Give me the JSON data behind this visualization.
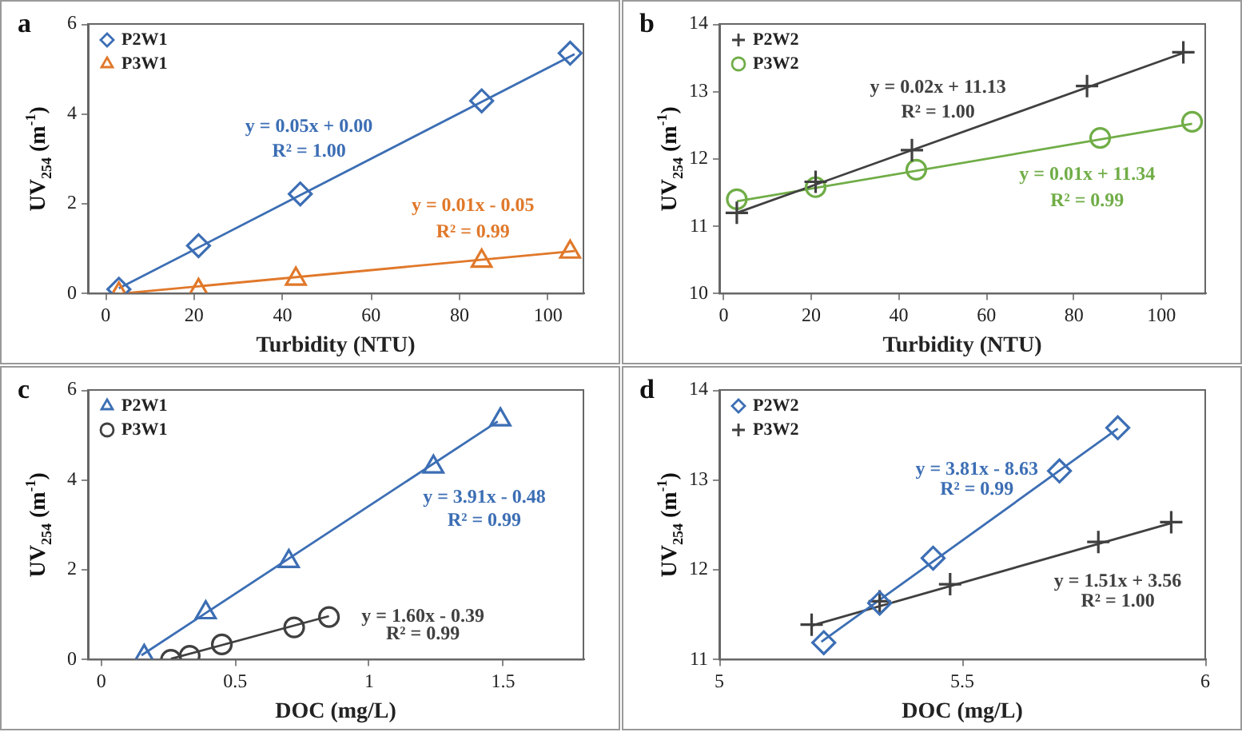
{
  "chart_data": [
    {
      "type": "scatter",
      "title": "a",
      "xlabel": "Turbidity (NTU)",
      "ylabel": "UV$_{254}$ (m$^{-1}$)",
      "xlim": [
        -4,
        108
      ],
      "xticks": [
        0,
        20,
        40,
        60,
        80,
        100
      ],
      "ylim": [
        0,
        6
      ],
      "yticks": [
        0,
        2,
        4,
        6
      ],
      "legend": "top left",
      "grid": false,
      "series": [
        {
          "name": "P2W1",
          "color": "#3c6eb4",
          "marker": "diamond",
          "x": [
            3,
            21,
            44,
            85,
            105
          ],
          "values": [
            0.1,
            1.07,
            2.22,
            4.29,
            5.35
          ]
        },
        {
          "name": "P3W1",
          "color": "#e0782a",
          "marker": "triangle",
          "x": [
            3,
            21,
            43,
            85,
            105
          ],
          "values": [
            0.0,
            0.08,
            0.33,
            0.73,
            0.93
          ]
        },
        {
          "type": "line",
          "color": "#3c6eb4",
          "marker": "none",
          "x": [
            3,
            106
          ],
          "values": [
            0.12,
            5.33
          ]
        },
        {
          "type": "line",
          "color": "#e0782a",
          "marker": "none",
          "x": [
            3,
            106
          ],
          "values": [
            0.0,
            0.95
          ]
        }
      ],
      "annotations": [
        "y = 0.05x + 0.00",
        "R² = 1.00",
        "y = 0.01x - 0.05",
        "R² = 0.99"
      ]
    },
    {
      "type": "scatter",
      "title": "b",
      "xlabel": "Turbidity (NTU)",
      "ylabel": "UV$_{254}$ (m$^{-1}$)",
      "xlim": [
        -1,
        110
      ],
      "xticks": [
        0,
        20,
        40,
        60,
        80,
        100
      ],
      "ylim": [
        10,
        14
      ],
      "yticks": [
        10,
        11,
        12,
        13,
        14
      ],
      "legend": "top left",
      "grid": false,
      "series": [
        {
          "name": "P2W2",
          "color": "#404040",
          "marker": "cross",
          "x": [
            3,
            21,
            43,
            83,
            105
          ],
          "values": [
            11.2,
            11.66,
            12.13,
            13.08,
            13.58
          ]
        },
        {
          "name": "P3W2",
          "color": "#70ad47",
          "marker": "circle",
          "x": [
            3,
            21,
            44,
            86,
            107
          ],
          "values": [
            11.4,
            11.58,
            11.84,
            12.31,
            12.55
          ]
        },
        {
          "type": "line",
          "color": "#404040",
          "marker": "none",
          "x": [
            3,
            105
          ],
          "values": [
            11.2,
            13.57
          ]
        },
        {
          "type": "line",
          "color": "#70ad47",
          "marker": "none",
          "x": [
            3,
            107
          ],
          "values": [
            11.37,
            12.52
          ]
        }
      ],
      "annotations": [
        "y = 0.02x + 11.13",
        "R² = 1.00",
        "y = 0.01x + 11.34",
        "R² = 0.99"
      ]
    },
    {
      "type": "scatter",
      "title": "c",
      "xlabel": "DOC (mg/L)",
      "ylabel": "UV$_{254}$ (m$^{-1}$)",
      "xlim": [
        -0.05,
        1.8
      ],
      "xticks": [
        0,
        0.5,
        1,
        1.5
      ],
      "ylim": [
        0,
        6
      ],
      "yticks": [
        0,
        2,
        4,
        6
      ],
      "legend": "top left",
      "grid": false,
      "series": [
        {
          "name": "P2W1",
          "color": "#3c6eb4",
          "marker": "triangle",
          "x": [
            0.16,
            0.39,
            0.7,
            1.24,
            1.49
          ],
          "values": [
            0.08,
            1.05,
            2.19,
            4.29,
            5.34
          ]
        },
        {
          "name": "P3W1",
          "color": "#404040",
          "marker": "circle",
          "x": [
            0.26,
            0.33,
            0.45,
            0.72,
            0.85
          ],
          "values": [
            0.0,
            0.09,
            0.34,
            0.72,
            0.95
          ]
        },
        {
          "type": "line",
          "color": "#3c6eb4",
          "marker": "none",
          "x": [
            0.15,
            1.48
          ],
          "values": [
            0.1,
            5.3
          ]
        },
        {
          "type": "line",
          "color": "#404040",
          "marker": "none",
          "x": [
            0.26,
            0.85
          ],
          "values": [
            0.02,
            0.97
          ]
        }
      ],
      "annotations": [
        "y = 3.91x - 0.48",
        "R² = 0.99",
        "y = 1.60x - 0.39",
        "R² = 0.99"
      ]
    },
    {
      "type": "scatter",
      "title": "d",
      "xlabel": "DOC (mg/L)",
      "ylabel": "UV$_{254}$ (m$^{-1}$)",
      "xlim": [
        5,
        6
      ],
      "xticks": [
        5,
        5.5,
        6
      ],
      "ylim": [
        11,
        14
      ],
      "yticks": [
        11,
        12,
        13,
        14
      ],
      "legend": "top left",
      "grid": false,
      "series": [
        {
          "name": "P2W2",
          "color": "#3c6eb4",
          "marker": "diamond",
          "x": [
            5.215,
            5.33,
            5.44,
            5.7,
            5.82
          ],
          "values": [
            11.19,
            11.63,
            12.13,
            13.1,
            13.58
          ]
        },
        {
          "name": "P3W2",
          "color": "#404040",
          "marker": "cross",
          "x": [
            5.19,
            5.33,
            5.475,
            5.78,
            5.93
          ],
          "values": [
            11.39,
            11.65,
            11.84,
            12.31,
            12.53
          ]
        },
        {
          "type": "line",
          "color": "#3c6eb4",
          "marker": "none",
          "x": [
            5.21,
            5.82
          ],
          "values": [
            11.2,
            13.57
          ]
        },
        {
          "type": "line",
          "color": "#404040",
          "marker": "none",
          "x": [
            5.19,
            5.93
          ],
          "values": [
            11.38,
            12.52
          ]
        }
      ],
      "annotations": [
        "y = 3.81x - 8.63",
        "R² = 0.99",
        "y = 1.51x + 3.56",
        "R² = 1.00"
      ]
    }
  ]
}
